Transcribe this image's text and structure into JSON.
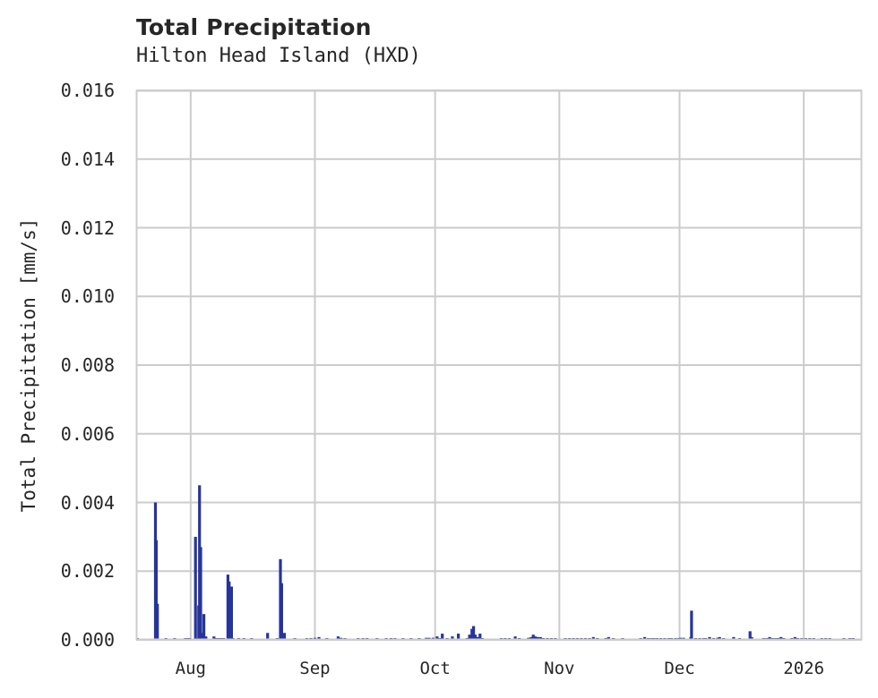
{
  "chart_data": {
    "type": "bar",
    "title": "Total Precipitation",
    "subtitle": "Hilton Head Island (HXD)",
    "xlabel": "",
    "ylabel": "Total Precipitation [mm/s]",
    "ylim": [
      0,
      0.016
    ],
    "yticks": [
      "0.000",
      "0.002",
      "0.004",
      "0.006",
      "0.008",
      "0.010",
      "0.012",
      "0.014",
      "0.016"
    ],
    "xticks": [
      {
        "label": "Aug",
        "day": 0
      },
      {
        "label": "Sep",
        "day": 31
      },
      {
        "label": "Oct",
        "day": 61
      },
      {
        "label": "Nov",
        "day": 92
      },
      {
        "label": "Dec",
        "day": 122
      },
      {
        "label": "2026",
        "day": 153
      }
    ],
    "x_unit": "days since Aug 1 (2025)",
    "xlim_days": [
      -13.6,
      167.5
    ],
    "grid": true,
    "legend": null,
    "bar_color": "#27349a",
    "series": [
      {
        "name": "Total Precipitation",
        "points": [
          {
            "day": -13.3,
            "value": 5e-05
          },
          {
            "day": -8.8,
            "value": 0.004
          },
          {
            "day": -8.6,
            "value": 0.0029
          },
          {
            "day": -8.3,
            "value": 0.00105
          },
          {
            "day": -6.2,
            "value": 5e-05
          },
          {
            "day": -4.0,
            "value": 4e-05
          },
          {
            "day": -1.3,
            "value": 5e-05
          },
          {
            "day": -0.8,
            "value": 5e-05
          },
          {
            "day": -0.3,
            "value": 5e-05
          },
          {
            "day": 1.2,
            "value": 0.003
          },
          {
            "day": 1.6,
            "value": 5e-05
          },
          {
            "day": 2.0,
            "value": 0.001
          },
          {
            "day": 2.2,
            "value": 0.0045
          },
          {
            "day": 2.5,
            "value": 0.0027
          },
          {
            "day": 2.8,
            "value": 0.0002
          },
          {
            "day": 3.3,
            "value": 0.00075
          },
          {
            "day": 3.8,
            "value": 0.0001
          },
          {
            "day": 5.8,
            "value": 0.0001
          },
          {
            "day": 6.4,
            "value": 5e-05
          },
          {
            "day": 7.0,
            "value": 5e-05
          },
          {
            "day": 7.6,
            "value": 5e-05
          },
          {
            "day": 8.2,
            "value": 5e-05
          },
          {
            "day": 9.3,
            "value": 0.0019
          },
          {
            "day": 9.6,
            "value": 0.0017
          },
          {
            "day": 10.2,
            "value": 0.00155
          },
          {
            "day": 10.5,
            "value": 5e-05
          },
          {
            "day": 12.0,
            "value": 4e-05
          },
          {
            "day": 13.3,
            "value": 4e-05
          },
          {
            "day": 15.2,
            "value": 4e-05
          },
          {
            "day": 19.2,
            "value": 0.0002
          },
          {
            "day": 21.6,
            "value": 5e-05
          },
          {
            "day": 22.4,
            "value": 0.00235
          },
          {
            "day": 22.7,
            "value": 0.00165
          },
          {
            "day": 23.4,
            "value": 0.0002
          },
          {
            "day": 26.0,
            "value": 4e-05
          },
          {
            "day": 29.0,
            "value": 5e-05
          },
          {
            "day": 30.0,
            "value": 5e-05
          },
          {
            "day": 31.0,
            "value": 6e-05
          },
          {
            "day": 32.0,
            "value": 8e-05
          },
          {
            "day": 34.0,
            "value": 4e-05
          },
          {
            "day": 36.8,
            "value": 0.0001
          },
          {
            "day": 37.5,
            "value": 6e-05
          },
          {
            "day": 38.5,
            "value": 5e-05
          },
          {
            "day": 41.8,
            "value": 5e-05
          },
          {
            "day": 43.0,
            "value": 5e-05
          },
          {
            "day": 44.0,
            "value": 5e-05
          },
          {
            "day": 46.5,
            "value": 4e-05
          },
          {
            "day": 48.8,
            "value": 5e-05
          },
          {
            "day": 50.0,
            "value": 5e-05
          },
          {
            "day": 51.0,
            "value": 5e-05
          },
          {
            "day": 53.0,
            "value": 4e-05
          },
          {
            "day": 55.0,
            "value": 4e-05
          },
          {
            "day": 57.0,
            "value": 4e-05
          },
          {
            "day": 58.8,
            "value": 6e-05
          },
          {
            "day": 59.5,
            "value": 6e-05
          },
          {
            "day": 60.5,
            "value": 6e-05
          },
          {
            "day": 61.5,
            "value": 0.0001
          },
          {
            "day": 62.2,
            "value": 5e-05
          },
          {
            "day": 62.8,
            "value": 0.00018
          },
          {
            "day": 64.0,
            "value": 5e-05
          },
          {
            "day": 65.3,
            "value": 0.0001
          },
          {
            "day": 66.8,
            "value": 0.00018
          },
          {
            "day": 69.0,
            "value": 5e-05
          },
          {
            "day": 69.6,
            "value": 0.00015
          },
          {
            "day": 70.2,
            "value": 0.00032
          },
          {
            "day": 70.6,
            "value": 0.0004
          },
          {
            "day": 71.0,
            "value": 0.00015
          },
          {
            "day": 71.6,
            "value": 8e-05
          },
          {
            "day": 72.2,
            "value": 0.00018
          },
          {
            "day": 72.8,
            "value": 5e-05
          },
          {
            "day": 77.5,
            "value": 4e-05
          },
          {
            "day": 78.5,
            "value": 5e-05
          },
          {
            "day": 79.5,
            "value": 4e-05
          },
          {
            "day": 81.0,
            "value": 0.0001
          },
          {
            "day": 82.0,
            "value": 5e-05
          },
          {
            "day": 84.3,
            "value": 6e-05
          },
          {
            "day": 85.0,
            "value": 8e-05
          },
          {
            "day": 85.5,
            "value": 0.00015
          },
          {
            "day": 86.0,
            "value": 0.0001
          },
          {
            "day": 86.6,
            "value": 8e-05
          },
          {
            "day": 87.3,
            "value": 8e-05
          },
          {
            "day": 88.0,
            "value": 5e-05
          },
          {
            "day": 89.0,
            "value": 5e-05
          },
          {
            "day": 90.0,
            "value": 5e-05
          },
          {
            "day": 91.0,
            "value": 4e-05
          },
          {
            "day": 93.5,
            "value": 5e-05
          },
          {
            "day": 94.5,
            "value": 5e-05
          },
          {
            "day": 95.5,
            "value": 5e-05
          },
          {
            "day": 96.5,
            "value": 5e-05
          },
          {
            "day": 97.5,
            "value": 5e-05
          },
          {
            "day": 98.5,
            "value": 5e-05
          },
          {
            "day": 99.5,
            "value": 5e-05
          },
          {
            "day": 100.5,
            "value": 8e-05
          },
          {
            "day": 101.5,
            "value": 5e-05
          },
          {
            "day": 103.6,
            "value": 5e-05
          },
          {
            "day": 104.3,
            "value": 8e-05
          },
          {
            "day": 105.5,
            "value": 4e-05
          },
          {
            "day": 107.8,
            "value": 4e-05
          },
          {
            "day": 112.3,
            "value": 5e-05
          },
          {
            "day": 113.3,
            "value": 8e-05
          },
          {
            "day": 114.2,
            "value": 5e-05
          },
          {
            "day": 115.0,
            "value": 5e-05
          },
          {
            "day": 115.6,
            "value": 5e-05
          },
          {
            "day": 116.4,
            "value": 5e-05
          },
          {
            "day": 117.3,
            "value": 5e-05
          },
          {
            "day": 118.3,
            "value": 5e-05
          },
          {
            "day": 119.3,
            "value": 5e-05
          },
          {
            "day": 120.0,
            "value": 5e-05
          },
          {
            "day": 121.0,
            "value": 4e-05
          },
          {
            "day": 121.8,
            "value": 5e-05
          },
          {
            "day": 122.2,
            "value": 6e-05
          },
          {
            "day": 123.0,
            "value": 6e-05
          },
          {
            "day": 124.8,
            "value": 8e-05
          },
          {
            "day": 125.0,
            "value": 0.00085
          },
          {
            "day": 126.0,
            "value": 5e-05
          },
          {
            "day": 127.0,
            "value": 5e-05
          },
          {
            "day": 128.0,
            "value": 5e-05
          },
          {
            "day": 128.5,
            "value": 5e-05
          },
          {
            "day": 129.5,
            "value": 8e-05
          },
          {
            "day": 130.5,
            "value": 5e-05
          },
          {
            "day": 131.5,
            "value": 6e-05
          },
          {
            "day": 132.0,
            "value": 8e-05
          },
          {
            "day": 133.0,
            "value": 5e-05
          },
          {
            "day": 135.5,
            "value": 8e-05
          },
          {
            "day": 137.0,
            "value": 4e-05
          },
          {
            "day": 139.6,
            "value": 0.00025
          },
          {
            "day": 140.0,
            "value": 8e-05
          },
          {
            "day": 143.0,
            "value": 4e-05
          },
          {
            "day": 143.8,
            "value": 5e-05
          },
          {
            "day": 144.5,
            "value": 8e-05
          },
          {
            "day": 145.2,
            "value": 5e-05
          },
          {
            "day": 146.0,
            "value": 5e-05
          },
          {
            "day": 146.6,
            "value": 5e-05
          },
          {
            "day": 147.3,
            "value": 8e-05
          },
          {
            "day": 148.0,
            "value": 5e-05
          },
          {
            "day": 150.0,
            "value": 5e-05
          },
          {
            "day": 150.8,
            "value": 8e-05
          },
          {
            "day": 151.5,
            "value": 5e-05
          },
          {
            "day": 152.5,
            "value": 5e-05
          },
          {
            "day": 153.5,
            "value": 5e-05
          },
          {
            "day": 154.5,
            "value": 5e-05
          },
          {
            "day": 155.5,
            "value": 5e-05
          },
          {
            "day": 157.5,
            "value": 4e-05
          },
          {
            "day": 158.5,
            "value": 4e-05
          },
          {
            "day": 159.5,
            "value": 4e-05
          },
          {
            "day": 163.0,
            "value": 4e-05
          },
          {
            "day": 164.5,
            "value": 5e-05
          },
          {
            "day": 165.3,
            "value": 5e-05
          }
        ]
      }
    ]
  },
  "colors": {
    "bar": "#27349a",
    "grid": "#cccccc",
    "frame": "#cccccc",
    "text": "#262626",
    "background": "#ffffff"
  }
}
